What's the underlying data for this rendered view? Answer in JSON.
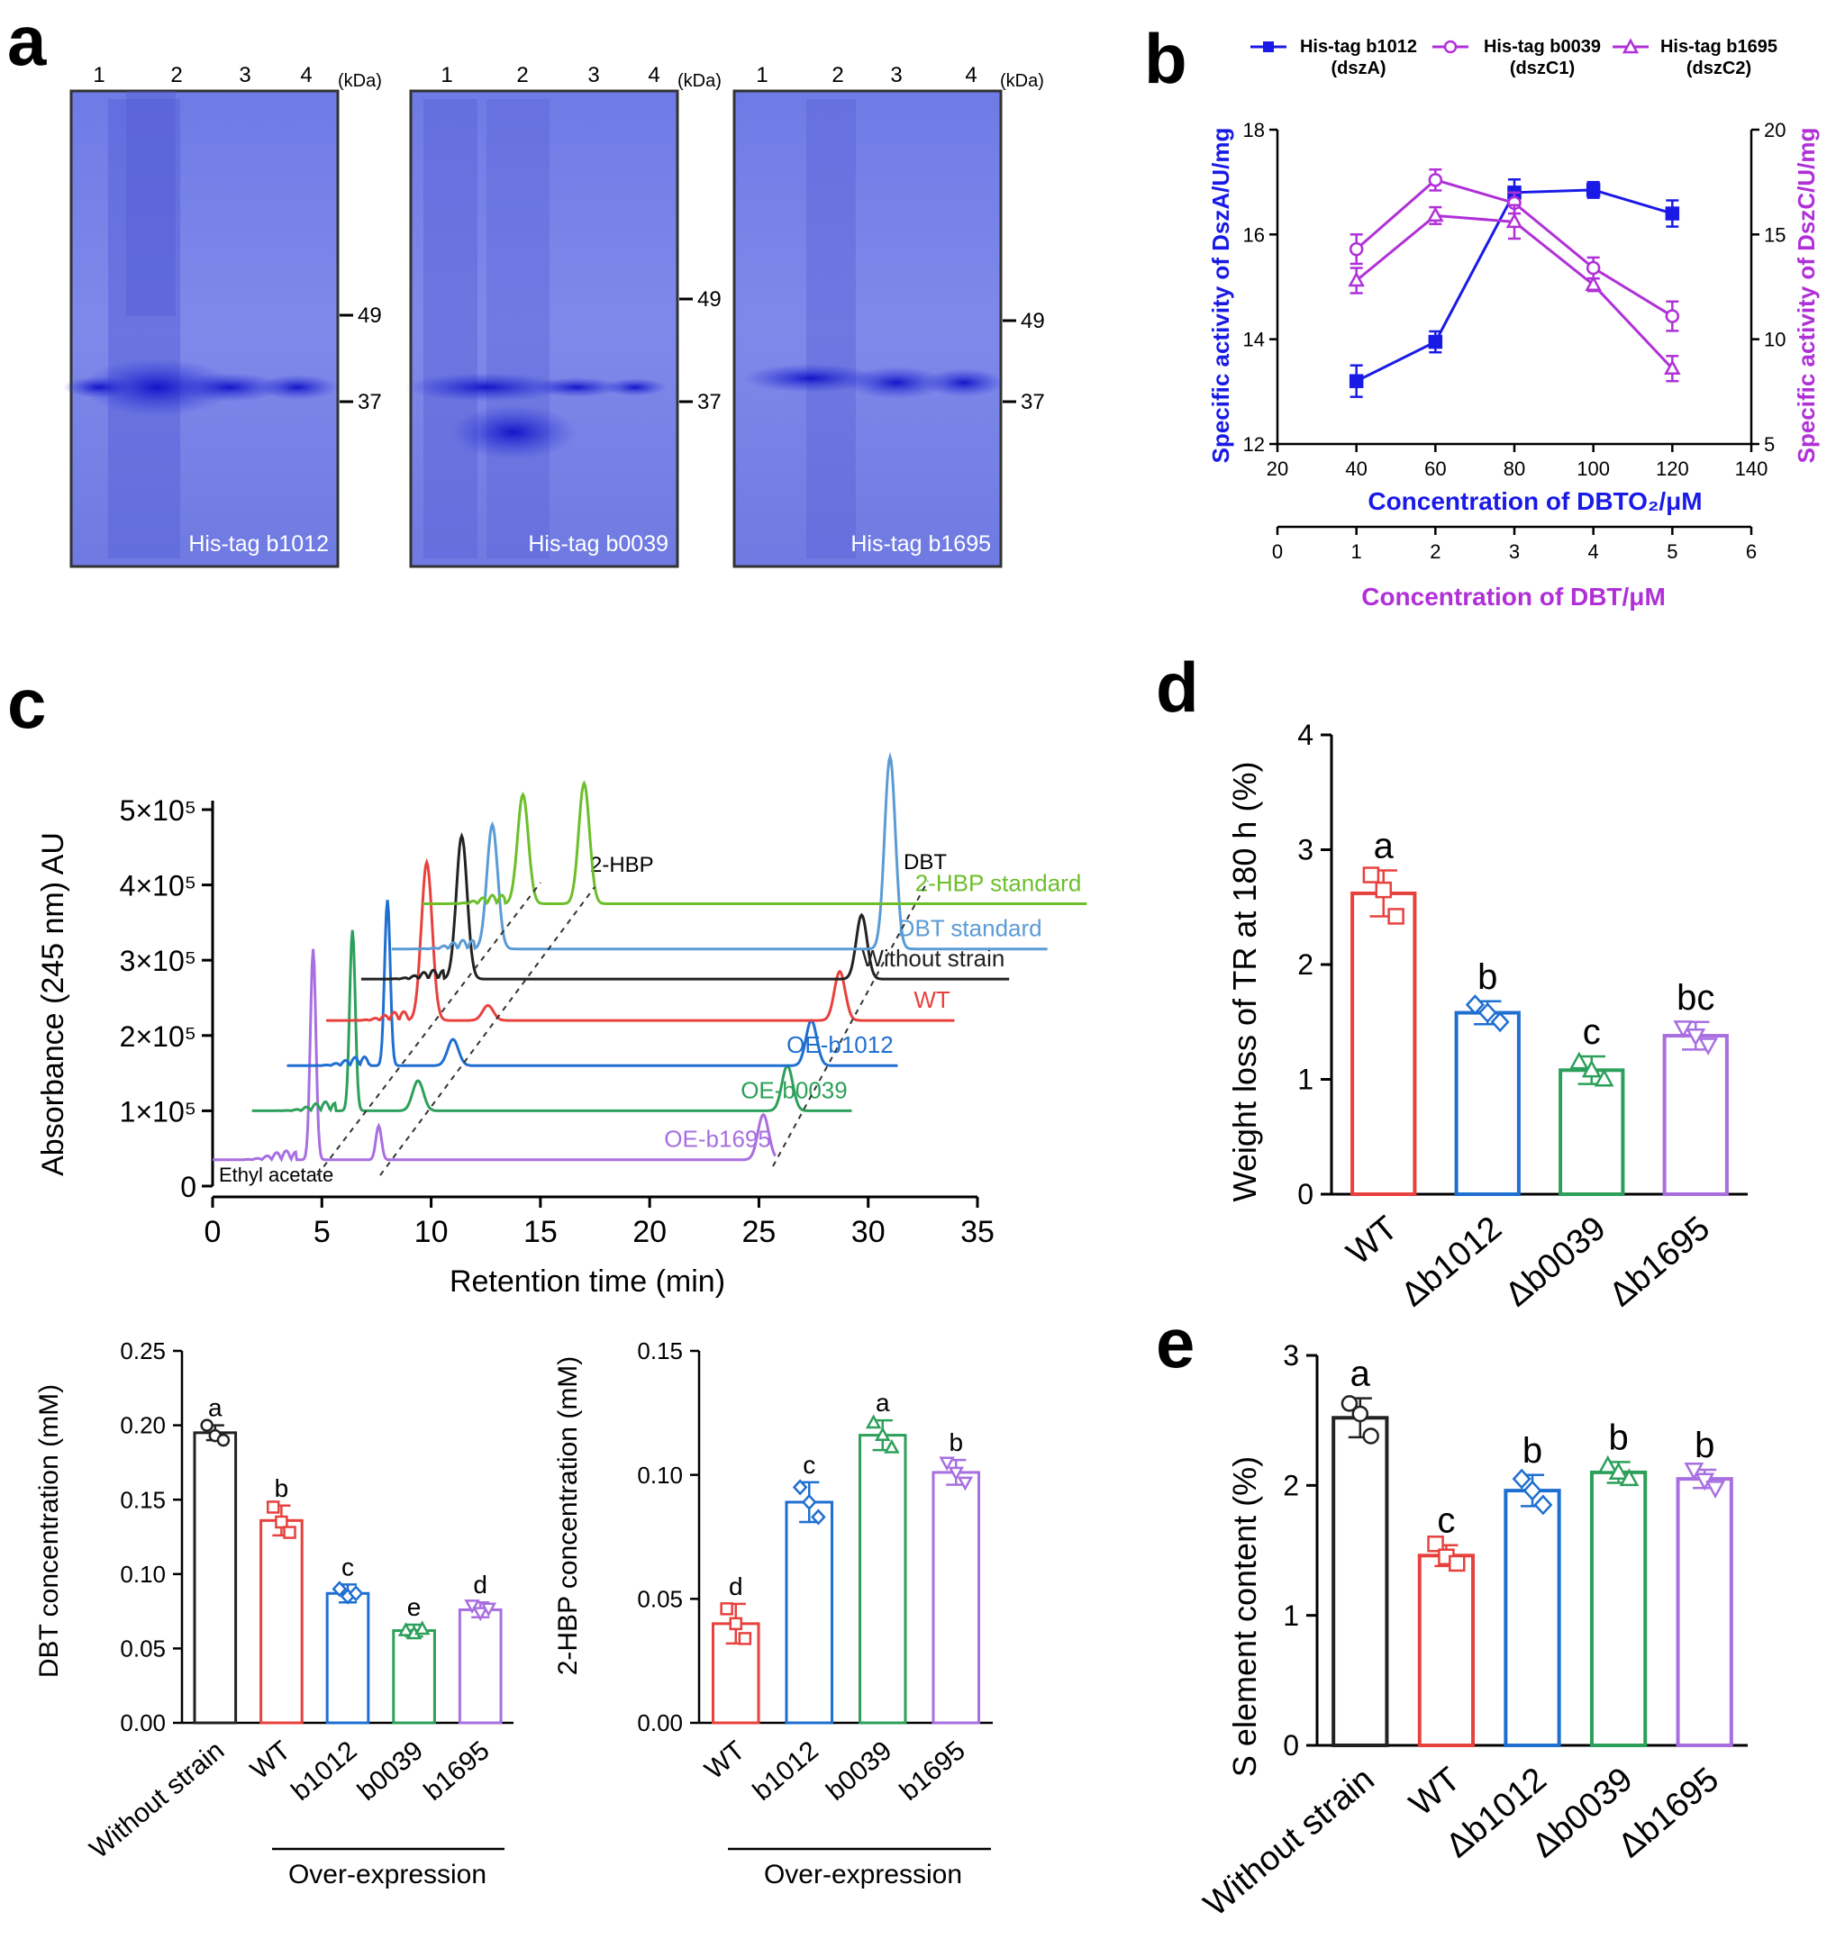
{
  "panel_letters": {
    "a": "a",
    "b": "b",
    "c": "c",
    "d": "d",
    "e": "e"
  },
  "colors": {
    "red": "#e8413d",
    "blue": "#1f6fd1",
    "green": "#2ca05a",
    "purple": "#a86fe0",
    "black": "#222222",
    "lightgreen": "#6cbf2a",
    "lightblue": "#5b9bd5",
    "dszA": "#1a1ae6",
    "dszC": "#b030d8",
    "gel": "#7b84e6"
  },
  "panel_a": {
    "kda_label": "(kDa)",
    "gels": [
      {
        "label": "His-tag b1012",
        "lanes": [
          "1",
          "2",
          "3",
          "4"
        ],
        "markers": [
          "49",
          "37"
        ]
      },
      {
        "label": "His-tag b0039",
        "lanes": [
          "1",
          "2",
          "3",
          "4"
        ],
        "markers": [
          "49",
          "37"
        ]
      },
      {
        "label": "His-tag b1695",
        "lanes": [
          "1",
          "2",
          "3",
          "4"
        ],
        "markers": [
          "49",
          "37"
        ]
      }
    ]
  },
  "chart_data": [
    {
      "id": "b",
      "type": "line",
      "xlabel": "Concentration of DBTO₂/μM",
      "xlabel2": "Concentration of DBT/μM",
      "ylabel": "Specific activity of DszA/U/mg",
      "ylabel2": "Specific activity of DszC/U/mg",
      "xlim": [
        20,
        140
      ],
      "xticks": [
        "20",
        "40",
        "60",
        "80",
        "100",
        "120",
        "140"
      ],
      "x2lim": [
        0,
        6
      ],
      "x2ticks": [
        "0",
        "1",
        "2",
        "3",
        "4",
        "5",
        "6"
      ],
      "ylim": [
        12,
        18
      ],
      "yticks": [
        "12",
        "14",
        "16",
        "18"
      ],
      "y2lim": [
        5,
        20
      ],
      "y2ticks": [
        "5",
        "10",
        "15",
        "20"
      ],
      "legend": [
        {
          "name": "His-tag b1012",
          "sub": "(dszA)"
        },
        {
          "name": "His-tag b0039",
          "sub": "(dszC1)"
        },
        {
          "name": "His-tag b1695",
          "sub": "(dszC2)"
        }
      ],
      "series": [
        {
          "name": "His-tag b1012 (dszA)",
          "axis": "left",
          "marker": "square-filled",
          "x": [
            40,
            60,
            80,
            100,
            120
          ],
          "values": [
            13.2,
            13.95,
            16.8,
            16.85,
            16.4
          ],
          "err": [
            0.3,
            0.2,
            0.25,
            0.15,
            0.25
          ]
        },
        {
          "name": "His-tag b0039 (dszC1)",
          "axis": "right",
          "marker": "circle-open",
          "x": [
            40,
            60,
            80,
            100,
            120
          ],
          "values": [
            14.3,
            17.6,
            16.5,
            13.4,
            11.1
          ],
          "err": [
            0.7,
            0.5,
            0.5,
            0.5,
            0.7
          ]
        },
        {
          "name": "His-tag b1695 (dszC2)",
          "axis": "right",
          "marker": "triangle-open",
          "x": [
            40,
            60,
            80,
            100,
            120
          ],
          "values": [
            12.8,
            15.9,
            15.6,
            12.6,
            8.6
          ],
          "err": [
            0.6,
            0.4,
            0.8,
            0.3,
            0.6
          ]
        }
      ]
    },
    {
      "id": "c-chromatogram",
      "type": "line",
      "xlabel": "Retention time (min)",
      "ylabel": "Absorbance (245 nm) AU",
      "xlim": [
        0,
        35
      ],
      "xticks": [
        "0",
        "5",
        "10",
        "15",
        "20",
        "25",
        "30",
        "35"
      ],
      "ylim": [
        0,
        500000
      ],
      "yticks": [
        "0",
        "1×10⁵",
        "2×10⁵",
        "3×10⁵",
        "4×10⁵",
        "5×10⁵"
      ],
      "peak_labels": [
        "2-HBP",
        "DBT"
      ],
      "solvent_label": "Ethyl acetate",
      "series": [
        {
          "name": "OE-b1695",
          "color_key": "purple",
          "offset_min": 0.0,
          "baseline": 35000,
          "peaks": [
            [
              4.6,
              280000
            ],
            [
              7.6,
              45000
            ],
            [
              25.2,
              60000
            ]
          ]
        },
        {
          "name": "OE-b0039",
          "color_key": "green",
          "offset_min": 1.8,
          "baseline": 100000,
          "peaks": [
            [
              4.6,
              240000
            ],
            [
              7.6,
              40000
            ],
            [
              24.5,
              60000
            ]
          ]
        },
        {
          "name": "OE-b1012",
          "color_key": "blue",
          "offset_min": 3.4,
          "baseline": 160000,
          "peaks": [
            [
              4.6,
              220000
            ],
            [
              7.6,
              35000
            ],
            [
              24.0,
              60000
            ]
          ]
        },
        {
          "name": "WT",
          "color_key": "red",
          "offset_min": 5.2,
          "baseline": 220000,
          "peaks": [
            [
              4.6,
              210000
            ],
            [
              7.4,
              20000
            ],
            [
              23.5,
              65000
            ]
          ]
        },
        {
          "name": "Without strain",
          "color_key": "black",
          "offset_min": 6.8,
          "baseline": 275000,
          "peaks": [
            [
              4.6,
              190000
            ],
            [
              22.9,
              85000
            ]
          ]
        },
        {
          "name": "DBT standard",
          "color_key": "lightblue",
          "offset_min": 8.2,
          "baseline": 315000,
          "peaks": [
            [
              4.6,
              165000
            ],
            [
              22.8,
              255000
            ]
          ]
        },
        {
          "name": "2-HBP standard",
          "color_key": "lightgreen",
          "offset_min": 9.6,
          "baseline": 375000,
          "peaks": [
            [
              4.6,
              145000
            ],
            [
              7.4,
              160000
            ]
          ]
        }
      ]
    },
    {
      "id": "c-dbt",
      "type": "bar",
      "ylabel": "DBT concentration (mM)",
      "ylim": [
        0,
        0.25
      ],
      "yticks": [
        "0.00",
        "0.05",
        "0.10",
        "0.15",
        "0.20",
        "0.25"
      ],
      "group_label": "Over-expression",
      "categories": [
        "Without strain",
        "WT",
        "b1012",
        "b0039",
        "b1695"
      ],
      "values": [
        0.195,
        0.136,
        0.087,
        0.062,
        0.076
      ],
      "err": [
        0.005,
        0.01,
        0.006,
        0.004,
        0.005
      ],
      "letters": [
        "a",
        "b",
        "c",
        "e",
        "d"
      ],
      "markers": [
        "circle",
        "square",
        "diamond",
        "triangle",
        "triangle-down"
      ],
      "color_keys": [
        "black",
        "red",
        "blue",
        "green",
        "purple"
      ],
      "points": [
        [
          0.2,
          0.193,
          0.19
        ],
        [
          0.145,
          0.135,
          0.128
        ],
        [
          0.09,
          0.085,
          0.087
        ],
        [
          0.062,
          0.06,
          0.063
        ],
        [
          0.079,
          0.074,
          0.077
        ]
      ]
    },
    {
      "id": "c-2hbp",
      "type": "bar",
      "ylabel": "2-HBP concentration (mM)",
      "ylim": [
        0,
        0.15
      ],
      "yticks": [
        "0.00",
        "0.05",
        "0.10",
        "0.15"
      ],
      "group_label": "Over-expression",
      "categories": [
        "WT",
        "b1012",
        "b0039",
        "b1695"
      ],
      "values": [
        0.04,
        0.089,
        0.116,
        0.101
      ],
      "err": [
        0.008,
        0.008,
        0.006,
        0.005
      ],
      "letters": [
        "d",
        "c",
        "a",
        "b"
      ],
      "markers": [
        "square",
        "diamond",
        "triangle",
        "triangle-down"
      ],
      "color_keys": [
        "red",
        "blue",
        "green",
        "purple"
      ],
      "points": [
        [
          0.046,
          0.04,
          0.034
        ],
        [
          0.095,
          0.089,
          0.083
        ],
        [
          0.121,
          0.116,
          0.111
        ],
        [
          0.105,
          0.101,
          0.097
        ]
      ]
    },
    {
      "id": "d",
      "type": "bar",
      "ylabel": "Weight loss of TR at 180 h (%)",
      "ylim": [
        0,
        4
      ],
      "yticks": [
        "0",
        "1",
        "2",
        "3",
        "4"
      ],
      "categories": [
        "WT",
        "Δb1012",
        "Δb0039",
        "Δb1695"
      ],
      "values": [
        2.62,
        1.58,
        1.08,
        1.38
      ],
      "err": [
        0.2,
        0.1,
        0.12,
        0.12
      ],
      "letters": [
        "a",
        "b",
        "c",
        "bc"
      ],
      "markers": [
        "square",
        "diamond",
        "triangle",
        "triangle-down"
      ],
      "color_keys": [
        "red",
        "blue",
        "green",
        "purple"
      ],
      "points": [
        [
          2.78,
          2.65,
          2.42
        ],
        [
          1.65,
          1.58,
          1.5
        ],
        [
          1.15,
          1.08,
          1.0
        ],
        [
          1.45,
          1.38,
          1.3
        ]
      ]
    },
    {
      "id": "e",
      "type": "bar",
      "ylabel": "S element content (%)",
      "ylim": [
        0,
        3
      ],
      "yticks": [
        "0",
        "1",
        "2",
        "3"
      ],
      "categories": [
        "Without strain",
        "WT",
        "Δb1012",
        "Δb0039",
        "Δb1695"
      ],
      "values": [
        2.52,
        1.46,
        1.96,
        2.1,
        2.05
      ],
      "err": [
        0.15,
        0.08,
        0.12,
        0.08,
        0.07
      ],
      "letters": [
        "a",
        "c",
        "b",
        "b",
        "b"
      ],
      "markers": [
        "circle",
        "square",
        "diamond",
        "triangle",
        "triangle-down"
      ],
      "color_keys": [
        "black",
        "red",
        "blue",
        "green",
        "purple"
      ],
      "points": [
        [
          2.63,
          2.55,
          2.38
        ],
        [
          1.55,
          1.45,
          1.4
        ],
        [
          2.05,
          1.96,
          1.85
        ],
        [
          2.15,
          2.1,
          2.05
        ],
        [
          2.12,
          2.04,
          1.98
        ]
      ]
    }
  ]
}
